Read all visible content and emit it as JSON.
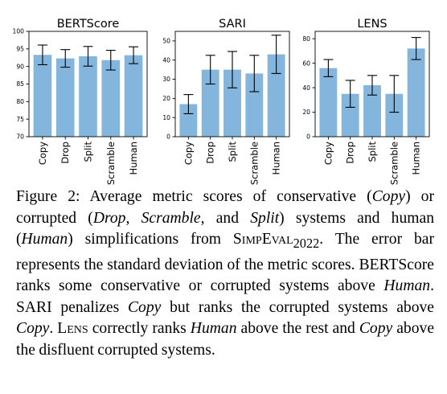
{
  "chart_data": [
    {
      "type": "bar",
      "title": "BERTScore",
      "categories": [
        "Copy",
        "Drop",
        "Split",
        "Scramble",
        "Human"
      ],
      "values": [
        93.3,
        92.3,
        92.9,
        91.8,
        93.2
      ],
      "errors": [
        2.8,
        2.5,
        2.8,
        2.8,
        2.4
      ],
      "ylim": [
        70,
        100
      ],
      "yticks": [
        70,
        75,
        80,
        85,
        90,
        95,
        100
      ],
      "bar_color": "#84b5dc"
    },
    {
      "type": "bar",
      "title": "SARI",
      "categories": [
        "Copy",
        "Drop",
        "Split",
        "Scramble",
        "Human"
      ],
      "values": [
        17,
        35,
        35,
        33,
        43
      ],
      "errors": [
        5,
        7.5,
        9.5,
        9.5,
        10
      ],
      "ylim": [
        0,
        55
      ],
      "yticks": [
        0,
        10,
        20,
        30,
        40,
        50
      ],
      "bar_color": "#84b5dc"
    },
    {
      "type": "bar",
      "title": "LENS",
      "categories": [
        "Copy",
        "Drop",
        "Split",
        "Scramble",
        "Human"
      ],
      "values": [
        56,
        35,
        42,
        35,
        72
      ],
      "errors": [
        7,
        11,
        8,
        15,
        9
      ],
      "ylim": [
        0,
        86
      ],
      "yticks": [
        0,
        20,
        40,
        60,
        80
      ],
      "bar_color": "#84b5dc"
    }
  ],
  "caption": {
    "label": "Figure 2:",
    "t1": " Average metric scores of conservative (",
    "copy": "Copy",
    "t2": ") or corrupted (",
    "drop": "Drop",
    "t3": ", ",
    "scramble": "Scramble",
    "t4": ", and ",
    "split": "Split",
    "t5": ") systems and human (",
    "human": "Human",
    "t6": ") simplifications from ",
    "simpeval": "SimpEval",
    "year": "2022",
    "t7": ". The error bar represents the standard deviation of the metric scores. BERTScore ranks some conservative or corrupted systems above ",
    "human2": "Human",
    "t8": ". SARI penalizes ",
    "copy2": "Copy",
    "t9": " but ranks the corrupted systems above ",
    "copy3": "Copy",
    "t10": ". ",
    "lens": "Lens",
    "t11": " correctly ranks ",
    "human3": "Human",
    "t12": " above the rest and ",
    "copy4": "Copy",
    "t13": " above the disfluent corrupted systems."
  }
}
